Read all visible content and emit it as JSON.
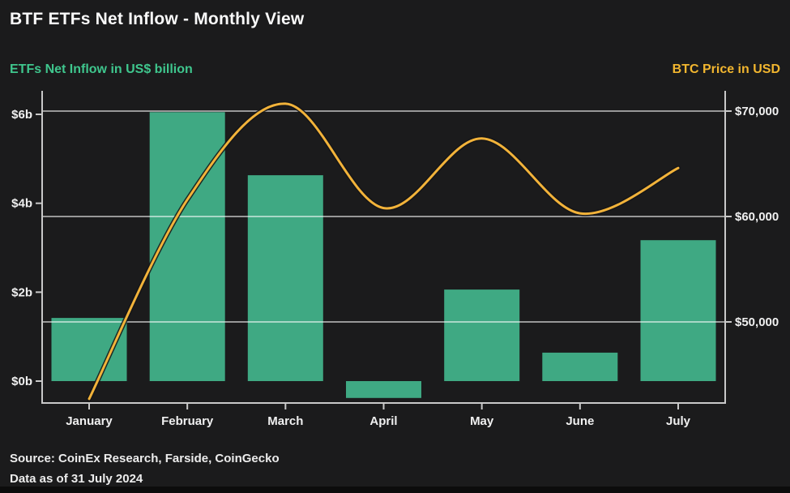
{
  "header": {
    "title": "BTF ETFs Net Inflow - Monthly View"
  },
  "axis_titles": {
    "left": "ETFs Net Inflow in US$ billion",
    "right": "BTC Price in USD"
  },
  "source": {
    "line1": "Source: CoinEx Research, Farside, CoinGecko",
    "line2": "Data as of 31 July 2024"
  },
  "colors": {
    "background": "#1b1b1c",
    "bar": "#3fa983",
    "line": "#f2b33a",
    "line_halo": "#141416",
    "left_title": "#3fc68d",
    "right_title": "#f2b62f",
    "grid": "rgba(255,255,255,0.55)",
    "axis": "#c9c9c9",
    "tick_text": "#f0f0f0"
  },
  "chart_data": {
    "type": "combo",
    "title": "BTF ETFs Net Inflow - Monthly View",
    "categories": [
      "January",
      "February",
      "March",
      "April",
      "May",
      "June",
      "July"
    ],
    "series": [
      {
        "name": "ETFs Net Inflow",
        "type": "bar",
        "axis": "left",
        "unit": "US$ billion",
        "values": [
          1.42,
          6.05,
          4.63,
          -0.38,
          2.06,
          0.64,
          3.17
        ]
      },
      {
        "name": "BTC Price",
        "type": "line",
        "axis": "right",
        "unit": "USD",
        "values": [
          42700,
          61600,
          70700,
          60800,
          67400,
          60300,
          64600
        ]
      }
    ],
    "left_axis": {
      "label": "ETFs Net Inflow in US$ billion",
      "ticks": [
        {
          "value": 0,
          "label": "$0b"
        },
        {
          "value": 2,
          "label": "$2b"
        },
        {
          "value": 4,
          "label": "$4b"
        },
        {
          "value": 6,
          "label": "$6b"
        }
      ],
      "range": [
        -0.5,
        6.55
      ]
    },
    "right_axis": {
      "label": "BTC Price in USD",
      "ticks": [
        {
          "value": 50000,
          "label": "$50,000"
        },
        {
          "value": 60000,
          "label": "$60,000"
        },
        {
          "value": 70000,
          "label": "$70,000"
        }
      ],
      "range": [
        42000,
        72000
      ]
    },
    "grid": "horizontal gridlines aligned to right axis ticks",
    "legend": "none"
  }
}
